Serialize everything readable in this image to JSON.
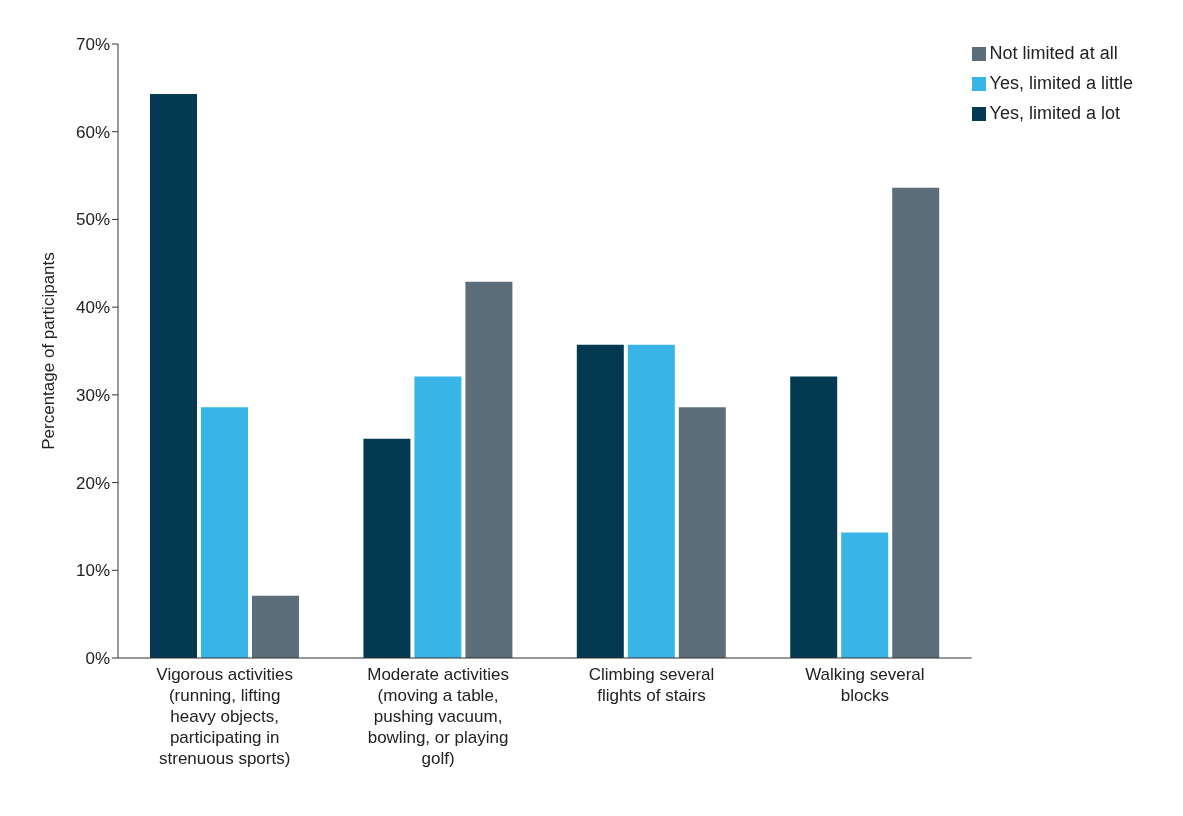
{
  "chart_data": {
    "type": "bar",
    "ylabel": "Percentage of participants",
    "categories": [
      "Vigorous activities (running, lifting heavy objects, participating in strenuous sports)",
      "Moderate activities (moving a table, pushing vacuum, bowling, or playing golf)",
      "Climbing several flights of stairs",
      "Walking several blocks"
    ],
    "series": [
      {
        "name": "Yes, limited a lot",
        "color": "#033a52",
        "values": [
          64.3,
          25,
          35.7,
          32.1
        ]
      },
      {
        "name": "Yes, limited a little",
        "color": "#39b4e6",
        "values": [
          28.6,
          32.1,
          35.7,
          14.3
        ]
      },
      {
        "name": "Not limited at all",
        "color": "#5b6e7a",
        "values": [
          7.1,
          42.9,
          28.6,
          53.6
        ]
      }
    ],
    "ylim": [
      0,
      70
    ],
    "yticks": [
      {
        "value": 0,
        "label": "0%"
      },
      {
        "value": 10,
        "label": "10%"
      },
      {
        "value": 20,
        "label": "20%"
      },
      {
        "value": 30,
        "label": "30%"
      },
      {
        "value": 40,
        "label": "40%"
      },
      {
        "value": 50,
        "label": "50%"
      },
      {
        "value": 60,
        "label": "60%"
      },
      {
        "value": 70,
        "label": "70%"
      }
    ],
    "grid": false,
    "legend": "top right"
  }
}
